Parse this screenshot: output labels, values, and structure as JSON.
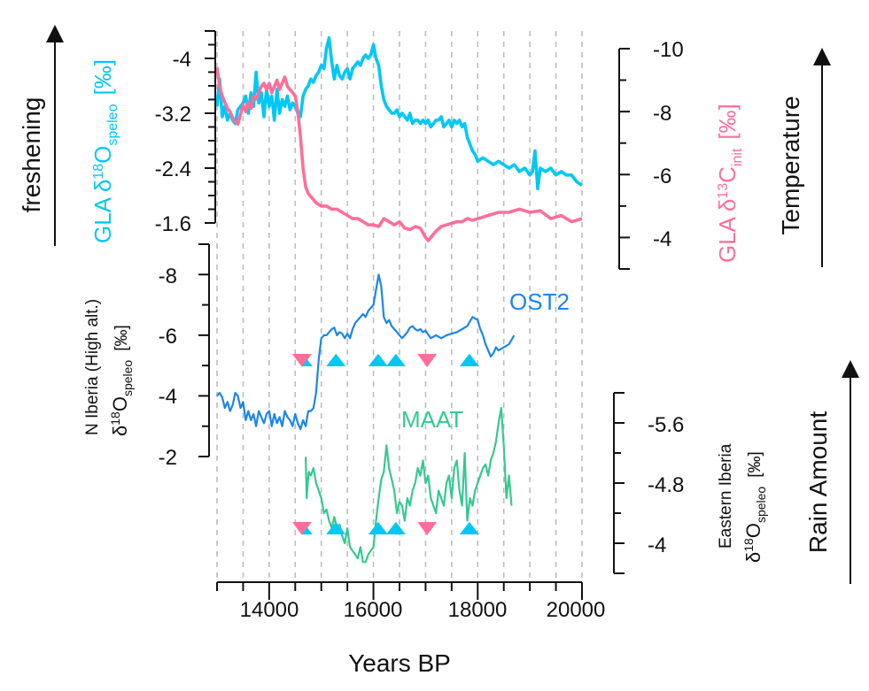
{
  "chart_data": {
    "type": "line",
    "title": "",
    "colors": {
      "gla_d18o": "#00c8f5",
      "gla_d13c": "#ff6e99",
      "ost2": "#1b86ef",
      "maat": "#35c98f",
      "marker_up": "#00c8f5",
      "marker_down": "#ff6e99",
      "grid": "#bdbdbd",
      "axis": "#111111"
    },
    "xaxis": {
      "label": "Years BP",
      "range": [
        13000,
        20000
      ],
      "major_ticks": [
        14000,
        16000,
        18000,
        20000
      ],
      "major_tick_labels": [
        "14000",
        "16000",
        "18000",
        "20000"
      ],
      "minor_step": 500,
      "grid": "dashed vertical every 500 years"
    },
    "panels": [
      {
        "id": "gla_d18o",
        "side": "left",
        "label": "GLA δ18O_speleo [‰]",
        "label_parts": {
          "main": "GLA δ",
          "sup": "18",
          "o": "O",
          "sub": "speleo",
          "unit": "[‰]"
        },
        "range": [
          -1.6,
          -4.4
        ],
        "inverted": true,
        "ticks": [
          -4,
          -3.2,
          -2.4,
          -1.6
        ],
        "tick_labels": [
          "-4",
          "-3.2",
          "-2.4",
          "-1.6"
        ],
        "series": {
          "name": "GLA δ18O",
          "x": [
            13000,
            13050,
            13100,
            13150,
            13200,
            13250,
            13300,
            13350,
            13400,
            13450,
            13500,
            13550,
            13600,
            13650,
            13700,
            13750,
            13800,
            13850,
            13900,
            13950,
            14000,
            14050,
            14100,
            14150,
            14200,
            14250,
            14300,
            14350,
            14400,
            14450,
            14500,
            14550,
            14600,
            14650,
            14700,
            14750,
            14800,
            14850,
            14900,
            14950,
            15000,
            15050,
            15100,
            15150,
            15200,
            15250,
            15300,
            15350,
            15400,
            15450,
            15500,
            15550,
            15600,
            15650,
            15700,
            15750,
            15800,
            15850,
            15900,
            15950,
            16000,
            16050,
            16100,
            16150,
            16200,
            16250,
            16300,
            16350,
            16400,
            16450,
            16500,
            16550,
            16600,
            16650,
            16700,
            16750,
            16800,
            16850,
            16900,
            16950,
            17000,
            17050,
            17100,
            17150,
            17200,
            17250,
            17300,
            17350,
            17400,
            17450,
            17500,
            17550,
            17600,
            17650,
            17700,
            17750,
            17800,
            17850,
            17900,
            17950,
            18000,
            18100,
            18200,
            18300,
            18400,
            18500,
            18600,
            18700,
            18800,
            18900,
            19000,
            19050,
            19100,
            19150,
            19200,
            19300,
            19400,
            19500,
            19600,
            19700,
            19800,
            19900,
            20000
          ],
          "y": [
            -3.3,
            -3.7,
            -3.15,
            -3.3,
            -3.1,
            -3.2,
            -3.1,
            -3.05,
            -3.25,
            -3.3,
            -3.35,
            -3.45,
            -3.2,
            -3.5,
            -3.3,
            -3.8,
            -3.35,
            -3.5,
            -3.15,
            -3.55,
            -3.3,
            -3.45,
            -3.1,
            -3.55,
            -3.2,
            -3.4,
            -3.3,
            -3.45,
            -3.25,
            -3.35,
            -3.3,
            -3.2,
            -3.15,
            -3.45,
            -3.55,
            -3.6,
            -3.7,
            -3.65,
            -3.75,
            -3.8,
            -3.9,
            -3.85,
            -4.15,
            -4.3,
            -3.95,
            -3.7,
            -3.9,
            -3.75,
            -3.7,
            -3.8,
            -3.85,
            -3.7,
            -3.85,
            -3.9,
            -3.95,
            -3.9,
            -4.0,
            -4.05,
            -4.0,
            -4.05,
            -4.2,
            -4.0,
            -3.9,
            -3.6,
            -3.4,
            -3.3,
            -3.25,
            -3.2,
            -3.2,
            -3.25,
            -3.15,
            -3.2,
            -3.15,
            -3.1,
            -3.2,
            -3.05,
            -3.1,
            -3.1,
            -3.05,
            -3.1,
            -3.05,
            -3.1,
            -3.0,
            -3.05,
            -3.1,
            -3.1,
            -3.15,
            -3.0,
            -3.05,
            -3.1,
            -3.0,
            -3.1,
            -3.05,
            -3.1,
            -3.0,
            -3.05,
            -2.85,
            -2.75,
            -2.65,
            -2.6,
            -2.5,
            -2.55,
            -2.5,
            -2.45,
            -2.5,
            -2.45,
            -2.4,
            -2.45,
            -2.35,
            -2.4,
            -2.3,
            -2.35,
            -2.65,
            -2.1,
            -2.4,
            -2.35,
            -2.4,
            -2.3,
            -2.35,
            -2.3,
            -2.3,
            -2.2,
            -2.15
          ]
        }
      },
      {
        "id": "gla_d13c",
        "side": "right",
        "label": "GLA δ13C_init [‰]",
        "label_parts": {
          "main": "GLA δ",
          "sup": "13",
          "o": "C",
          "sub": "init",
          "unit": "[‰]"
        },
        "range": [
          -3,
          -10
        ],
        "inverted": true,
        "ticks": [
          -10,
          -8,
          -6,
          -4
        ],
        "tick_labels": [
          "-10",
          "-8",
          "-6",
          "-4"
        ],
        "series": {
          "name": "GLA δ13C",
          "x": [
            13000,
            13050,
            13100,
            13150,
            13200,
            13250,
            13300,
            13350,
            13400,
            13450,
            13500,
            13550,
            13600,
            13650,
            13700,
            13750,
            13800,
            13850,
            13900,
            13950,
            14000,
            14050,
            14100,
            14150,
            14200,
            14250,
            14300,
            14350,
            14400,
            14450,
            14500,
            14550,
            14600,
            14650,
            14700,
            14750,
            14800,
            14850,
            14900,
            15000,
            15100,
            15200,
            15300,
            15400,
            15500,
            15600,
            15700,
            15800,
            15900,
            16000,
            16100,
            16200,
            16300,
            16400,
            16500,
            16600,
            16700,
            16800,
            16900,
            17000,
            17050,
            17100,
            17200,
            17300,
            17400,
            17500,
            17600,
            17700,
            17800,
            17900,
            18000,
            18200,
            18400,
            18600,
            18800,
            19000,
            19200,
            19400,
            19600,
            19800,
            20000
          ],
          "y": [
            -9.4,
            -8.8,
            -8.5,
            -8.3,
            -8.1,
            -8.0,
            -7.8,
            -7.7,
            -7.6,
            -7.9,
            -8.2,
            -8.0,
            -8.3,
            -8.1,
            -8.5,
            -8.4,
            -8.6,
            -8.8,
            -8.9,
            -8.7,
            -8.9,
            -8.6,
            -8.8,
            -9.0,
            -8.7,
            -8.9,
            -9.1,
            -8.8,
            -8.7,
            -8.6,
            -8.5,
            -8.0,
            -7.2,
            -6.2,
            -5.6,
            -5.4,
            -5.3,
            -5.2,
            -5.1,
            -5.0,
            -5.0,
            -4.9,
            -4.9,
            -4.8,
            -4.7,
            -4.6,
            -4.6,
            -4.5,
            -4.4,
            -4.4,
            -4.35,
            -4.6,
            -4.5,
            -4.4,
            -4.5,
            -4.3,
            -4.25,
            -4.35,
            -4.3,
            -4.0,
            -3.9,
            -4.0,
            -4.2,
            -4.35,
            -4.4,
            -4.45,
            -4.5,
            -4.5,
            -4.6,
            -4.55,
            -4.6,
            -4.7,
            -4.8,
            -4.8,
            -4.9,
            -4.8,
            -4.85,
            -4.6,
            -4.7,
            -4.5,
            -4.6
          ]
        }
      },
      {
        "id": "ost2",
        "side": "left",
        "label": "N Iberia (High alt.) δ18O_speleo [‰]",
        "label_parts": {
          "line1": "N Iberia (High alt.)",
          "main": "δ",
          "sup": "18",
          "o": "O",
          "sub": "speleo",
          "unit": "[‰]"
        },
        "range": [
          -2,
          -9
        ],
        "inverted": true,
        "ticks": [
          -8,
          -6,
          -4,
          -2
        ],
        "tick_labels": [
          "-8",
          "-6",
          "-4",
          "-2"
        ],
        "series": {
          "name": "OST2",
          "annotation": "OST2",
          "x": [
            13000,
            13050,
            13100,
            13150,
            13200,
            13250,
            13300,
            13350,
            13400,
            13450,
            13500,
            13550,
            13600,
            13650,
            13700,
            13750,
            13800,
            13850,
            13900,
            13950,
            14000,
            14050,
            14100,
            14150,
            14200,
            14250,
            14300,
            14350,
            14400,
            14450,
            14500,
            14550,
            14600,
            14650,
            14700,
            14750,
            14800,
            14850,
            14900,
            14950,
            15000,
            15050,
            15100,
            15150,
            15200,
            15250,
            15300,
            15350,
            15400,
            15450,
            15500,
            15550,
            15600,
            15650,
            15700,
            15750,
            15800,
            15850,
            15900,
            15950,
            16000,
            16050,
            16100,
            16150,
            16200,
            16250,
            16300,
            16350,
            16400,
            16450,
            16500,
            16550,
            16600,
            16650,
            16700,
            16750,
            16800,
            16850,
            16900,
            16950,
            17000,
            17100,
            17200,
            17300,
            17400,
            17500,
            17600,
            17700,
            17800,
            17900,
            18000,
            18050,
            18100,
            18150,
            18200,
            18250,
            18300,
            18350,
            18400,
            18500,
            18600,
            18700
          ],
          "y": [
            -4.0,
            -4.1,
            -3.95,
            -3.6,
            -3.8,
            -3.5,
            -3.7,
            -4.1,
            -4.0,
            -3.6,
            -3.8,
            -3.2,
            -3.5,
            -3.2,
            -3.4,
            -3.0,
            -3.5,
            -3.3,
            -3.1,
            -3.4,
            -3.5,
            -3.0,
            -3.4,
            -3.1,
            -3.3,
            -3.0,
            -3.5,
            -3.3,
            -3.2,
            -3.0,
            -3.4,
            -3.1,
            -2.9,
            -3.2,
            -3.0,
            -3.5,
            -3.5,
            -3.6,
            -4.1,
            -5.2,
            -5.9,
            -6.0,
            -6.0,
            -6.1,
            -6.2,
            -6.25,
            -6.0,
            -6.1,
            -6.05,
            -5.9,
            -6.05,
            -5.9,
            -6.2,
            -6.4,
            -6.5,
            -6.6,
            -6.7,
            -6.6,
            -6.8,
            -6.9,
            -7.0,
            -7.5,
            -8.0,
            -7.6,
            -6.6,
            -6.4,
            -6.5,
            -6.3,
            -6.2,
            -6.1,
            -6.0,
            -5.9,
            -6.0,
            -6.1,
            -6.25,
            -6.3,
            -6.2,
            -6.15,
            -6.2,
            -6.1,
            -6.15,
            -5.9,
            -6.0,
            -5.9,
            -6.0,
            -6.05,
            -6.1,
            -6.2,
            -6.3,
            -6.6,
            -6.5,
            -6.2,
            -6.0,
            -5.7,
            -5.5,
            -5.3,
            -5.4,
            -5.6,
            -5.5,
            -5.6,
            -5.7,
            -6.0
          ]
        }
      },
      {
        "id": "maat",
        "side": "right",
        "label": "Eastern Iberia δ18O_speleo [‰]",
        "label_parts": {
          "line1": "Eastern Iberia",
          "main": "δ",
          "sup": "18",
          "o": "O",
          "sub": "speleo",
          "unit": "[‰]"
        },
        "range": [
          -3.6,
          -6.0
        ],
        "inverted": true,
        "ticks": [
          -5.6,
          -4.8,
          -4
        ],
        "tick_labels": [
          "-5.6",
          "-4.8",
          "-4"
        ],
        "series": {
          "name": "MAAT",
          "annotation": "MAAT",
          "x": [
            14700,
            14720,
            14740,
            14760,
            14800,
            14850,
            14900,
            14950,
            15000,
            15050,
            15100,
            15150,
            15200,
            15250,
            15300,
            15350,
            15400,
            15450,
            15500,
            15550,
            15600,
            15650,
            15700,
            15750,
            15800,
            15850,
            15900,
            15950,
            16000,
            16050,
            16100,
            16150,
            16200,
            16250,
            16300,
            16350,
            16400,
            16450,
            16500,
            16550,
            16600,
            16650,
            16700,
            16750,
            16800,
            16850,
            16900,
            16950,
            17000,
            17050,
            17100,
            17150,
            17200,
            17250,
            17300,
            17350,
            17400,
            17450,
            17500,
            17550,
            17600,
            17650,
            17700,
            17750,
            17800,
            17850,
            17900,
            17950,
            18000,
            18050,
            18100,
            18150,
            18200,
            18250,
            18300,
            18350,
            18400,
            18450,
            18500,
            18550,
            18600,
            18650
          ],
          "y": [
            -5.15,
            -4.6,
            -4.8,
            -4.95,
            -4.9,
            -5.0,
            -4.8,
            -4.7,
            -4.6,
            -4.4,
            -4.45,
            -4.3,
            -4.2,
            -4.35,
            -4.2,
            -4.25,
            -4.1,
            -4.0,
            -4.2,
            -3.95,
            -3.9,
            -3.85,
            -3.8,
            -3.95,
            -3.75,
            -3.75,
            -3.85,
            -3.9,
            -3.95,
            -4.3,
            -4.6,
            -4.85,
            -4.95,
            -5.3,
            -5.0,
            -4.85,
            -4.7,
            -4.4,
            -4.55,
            -4.5,
            -4.3,
            -4.6,
            -4.5,
            -4.7,
            -4.8,
            -5.0,
            -4.9,
            -5.1,
            -4.8,
            -4.9,
            -4.6,
            -4.5,
            -4.4,
            -4.7,
            -4.6,
            -4.5,
            -4.8,
            -4.9,
            -4.6,
            -5.0,
            -5.1,
            -4.7,
            -4.5,
            -5.2,
            -4.3,
            -4.6,
            -4.5,
            -4.7,
            -4.8,
            -4.9,
            -5.0,
            -5.05,
            -4.9,
            -5.1,
            -5.2,
            -5.35,
            -5.6,
            -5.8,
            -5.3,
            -4.6,
            -4.9,
            -4.5
          ]
        }
      }
    ],
    "markers": {
      "ost2_panel": [
        {
          "year": 14630,
          "type": "down",
          "color": "pink"
        },
        {
          "year": 14730,
          "type": "up",
          "color": "cyan",
          "size": "small"
        },
        {
          "year": 15280,
          "type": "up",
          "color": "cyan"
        },
        {
          "year": 16090,
          "type": "up",
          "color": "cyan"
        },
        {
          "year": 16430,
          "type": "up",
          "color": "cyan"
        },
        {
          "year": 17030,
          "type": "down",
          "color": "pink"
        },
        {
          "year": 17840,
          "type": "up",
          "color": "cyan"
        }
      ],
      "maat_panel": [
        {
          "year": 14630,
          "type": "down",
          "color": "pink"
        },
        {
          "year": 14730,
          "type": "up",
          "color": "cyan",
          "size": "small"
        },
        {
          "year": 15280,
          "type": "up",
          "color": "cyan"
        },
        {
          "year": 16090,
          "type": "up",
          "color": "cyan"
        },
        {
          "year": 16430,
          "type": "up",
          "color": "cyan"
        },
        {
          "year": 17030,
          "type": "down",
          "color": "pink"
        },
        {
          "year": 17840,
          "type": "up",
          "color": "cyan"
        }
      ]
    },
    "side_arrows": [
      {
        "label": "freshening",
        "side": "left",
        "direction": "up"
      },
      {
        "label": "Temperature",
        "side": "right",
        "direction": "up"
      },
      {
        "label": "Rain Amount",
        "side": "right",
        "direction": "up"
      }
    ]
  }
}
